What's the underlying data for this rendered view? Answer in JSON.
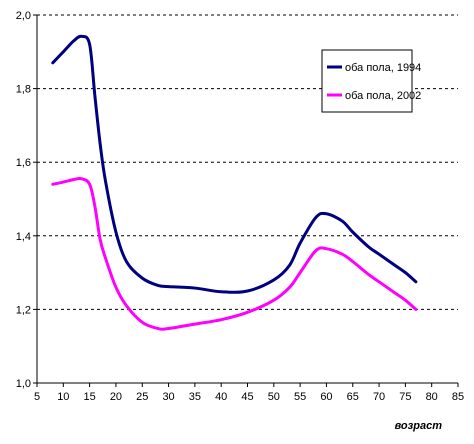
{
  "chart_data": {
    "type": "line",
    "title": "",
    "xlabel": "возраст",
    "ylabel": "",
    "xlim": [
      5,
      85
    ],
    "ylim": [
      1.0,
      2.0
    ],
    "x_ticks": [
      "5",
      "10",
      "15",
      "20",
      "25",
      "30",
      "35",
      "40",
      "45",
      "50",
      "55",
      "60",
      "65",
      "70",
      "75",
      "80",
      "85"
    ],
    "y_ticks": [
      "1,0",
      "1,2",
      "1,4",
      "1,6",
      "1,8",
      "2,0"
    ],
    "grid": "horizontal-dashed",
    "legend_position": "right",
    "series": [
      {
        "name": "оба пола, 1994",
        "color": "#000080",
        "x": [
          8,
          10,
          12,
          13.5,
          15,
          16,
          17,
          18,
          20,
          22,
          25,
          28,
          30,
          35,
          40,
          45,
          50,
          53,
          55,
          58,
          60,
          63,
          65,
          68,
          70,
          73,
          75,
          77
        ],
        "y": [
          1.87,
          1.9,
          1.93,
          1.942,
          1.92,
          1.78,
          1.65,
          1.55,
          1.41,
          1.33,
          1.285,
          1.265,
          1.262,
          1.258,
          1.248,
          1.25,
          1.28,
          1.32,
          1.38,
          1.45,
          1.46,
          1.44,
          1.41,
          1.37,
          1.35,
          1.32,
          1.3,
          1.275
        ]
      },
      {
        "name": "оба пола, 2002",
        "color": "#ff00ff",
        "x": [
          8,
          10,
          12,
          13.5,
          15,
          16,
          17,
          18,
          20,
          22,
          25,
          28,
          30,
          35,
          40,
          45,
          50,
          53,
          55,
          58,
          60,
          63,
          65,
          68,
          70,
          73,
          75,
          77
        ],
        "y": [
          1.54,
          1.546,
          1.553,
          1.555,
          1.54,
          1.48,
          1.39,
          1.34,
          1.26,
          1.21,
          1.165,
          1.148,
          1.148,
          1.16,
          1.172,
          1.192,
          1.225,
          1.26,
          1.3,
          1.36,
          1.365,
          1.35,
          1.33,
          1.295,
          1.275,
          1.245,
          1.225,
          1.2
        ]
      }
    ]
  }
}
